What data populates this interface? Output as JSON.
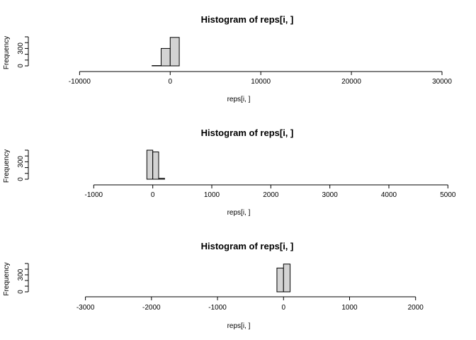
{
  "chart_data": [
    {
      "type": "bar",
      "subtype": "histogram",
      "title": "Histogram of reps[i, ]",
      "xlabel": "reps[i, ]",
      "ylabel": "Frequency",
      "xlim": [
        -13000,
        30000
      ],
      "ylim": [
        0,
        500
      ],
      "x_ticks": [
        "-10000",
        "0",
        "10000",
        "20000",
        "30000"
      ],
      "y_ticks": [
        "0",
        "300"
      ],
      "bin_width": 1000,
      "bins": [
        {
          "start": -13000,
          "end": -2000,
          "count": 0
        },
        {
          "start": -2000,
          "end": -1000,
          "count": 5
        },
        {
          "start": -1000,
          "end": 0,
          "count": 300
        },
        {
          "start": 0,
          "end": 1000,
          "count": 490
        },
        {
          "start": 1000,
          "end": 30000,
          "count": 0
        }
      ],
      "grid": false
    },
    {
      "type": "bar",
      "subtype": "histogram",
      "title": "Histogram of reps[i, ]",
      "xlabel": "reps[i, ]",
      "ylabel": "Frequency",
      "xlim": [
        -1700,
        4900
      ],
      "ylim": [
        0,
        500
      ],
      "x_ticks": [
        "-1000",
        "0",
        "1000",
        "2000",
        "3000",
        "4000",
        "5000"
      ],
      "y_ticks": [
        "0",
        "300"
      ],
      "bin_width": 100,
      "bins": [
        {
          "start": -1000,
          "end": -100,
          "count": 0
        },
        {
          "start": -100,
          "end": 0,
          "count": 500
        },
        {
          "start": 0,
          "end": 100,
          "count": 470
        },
        {
          "start": 100,
          "end": 200,
          "count": 15
        },
        {
          "start": 200,
          "end": 4900,
          "count": 0
        }
      ],
      "grid": false
    },
    {
      "type": "bar",
      "subtype": "histogram",
      "title": "Histogram of reps[i, ]",
      "xlabel": "reps[i, ]",
      "ylabel": "Frequency",
      "xlim": [
        -3500,
        2400
      ],
      "ylim": [
        0,
        500
      ],
      "x_ticks": [
        "-3000",
        "-2000",
        "-1000",
        "0",
        "1000",
        "2000"
      ],
      "y_ticks": [
        "0",
        "300"
      ],
      "bin_width": 100,
      "bins": [
        {
          "start": -3000,
          "end": -100,
          "count": 0
        },
        {
          "start": -100,
          "end": 0,
          "count": 420
        },
        {
          "start": 0,
          "end": 100,
          "count": 490
        },
        {
          "start": 100,
          "end": 2000,
          "count": 0
        }
      ],
      "grid": false
    }
  ]
}
